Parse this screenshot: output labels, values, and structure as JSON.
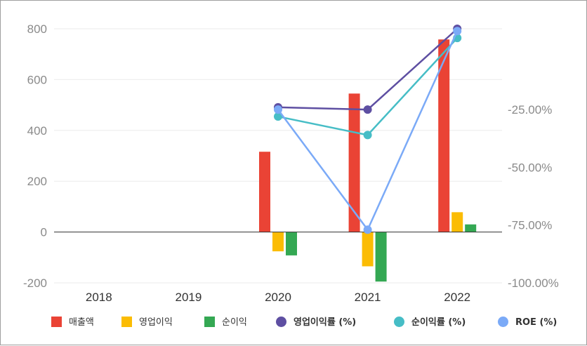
{
  "chart_data": {
    "type": "bar",
    "categories": [
      "2018",
      "2019",
      "2020",
      "2021",
      "2022"
    ],
    "y_left": {
      "ticks": [
        800,
        600,
        400,
        200,
        0,
        -200
      ],
      "ylim": [
        -200,
        800
      ]
    },
    "y_right": {
      "tick_labels": [
        "-25.00%",
        "-50.00%",
        "-75.00%",
        "-100.00%"
      ],
      "tick_values": [
        -25,
        -50,
        -75,
        -100
      ],
      "ylim": [
        -100,
        10
      ]
    },
    "grid": true,
    "legend_position": "bottom",
    "bar_series": [
      {
        "name": "매출액",
        "color": "#ea4335",
        "values": [
          null,
          null,
          316,
          545,
          758
        ]
      },
      {
        "name": "영업이익",
        "color": "#fbbc04",
        "values": [
          null,
          null,
          -76,
          -135,
          78
        ]
      },
      {
        "name": "순이익",
        "color": "#34a853",
        "values": [
          null,
          null,
          -92,
          -195,
          30
        ]
      }
    ],
    "line_series": [
      {
        "name": "영업이익률 (%)",
        "color": "#5e4fa2",
        "values": [
          null,
          null,
          -24,
          -25,
          10
        ]
      },
      {
        "name": "순이익률 (%)",
        "color": "#46bdc6",
        "values": [
          null,
          null,
          -28,
          -36,
          6
        ]
      },
      {
        "name": "ROE (%)",
        "color": "#7baaf7",
        "values": [
          null,
          null,
          -25,
          -77,
          9
        ]
      }
    ]
  }
}
